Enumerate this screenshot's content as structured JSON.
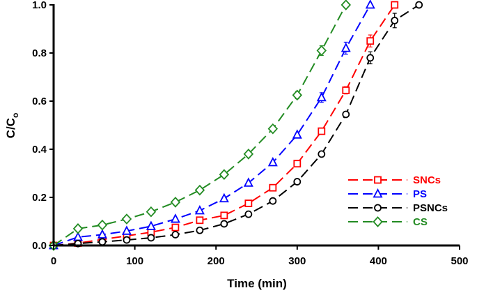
{
  "chart_data": {
    "type": "line",
    "title": "",
    "xlabel": "Time (min)",
    "ylabel": {
      "main": "C/C",
      "sub": "o"
    },
    "xlim": [
      0,
      500
    ],
    "ylim": [
      0,
      1.0
    ],
    "xticks": [
      0,
      100,
      200,
      300,
      400,
      500
    ],
    "yticks": [
      0.0,
      0.2,
      0.4,
      0.6,
      0.8,
      1.0
    ],
    "xtick_labels": [
      "0",
      "100",
      "200",
      "300",
      "400",
      "500"
    ],
    "ytick_labels": [
      "0.0",
      "0.2",
      "0.4",
      "0.6",
      "0.8",
      "1.0"
    ],
    "grid": false,
    "legend_position": "right",
    "series": [
      {
        "name": "SNCs",
        "color": "#ff0000",
        "marker": "square",
        "x": [
          0,
          30,
          60,
          90,
          120,
          150,
          180,
          210,
          240,
          270,
          300,
          330,
          360,
          390,
          420
        ],
        "y": [
          0.0,
          0.01,
          0.025,
          0.04,
          0.055,
          0.075,
          0.105,
          0.125,
          0.175,
          0.24,
          0.34,
          0.475,
          0.645,
          0.85,
          1.0
        ],
        "err": [
          0,
          0,
          0,
          0,
          0,
          0,
          0,
          0,
          0,
          0,
          0,
          0,
          0.015,
          0.025,
          0
        ]
      },
      {
        "name": "PS",
        "color": "#0000ff",
        "marker": "triangle",
        "x": [
          0,
          30,
          60,
          90,
          120,
          150,
          180,
          210,
          240,
          270,
          300,
          330,
          360,
          390
        ],
        "y": [
          0.0,
          0.035,
          0.045,
          0.06,
          0.08,
          0.11,
          0.145,
          0.195,
          0.26,
          0.345,
          0.46,
          0.615,
          0.82,
          1.0
        ],
        "err": [
          0,
          0,
          0,
          0,
          0,
          0,
          0,
          0,
          0,
          0,
          0,
          0.02,
          0.025,
          0
        ]
      },
      {
        "name": "PSNCs",
        "color": "#000000",
        "marker": "circle",
        "x": [
          0,
          30,
          60,
          90,
          120,
          150,
          180,
          210,
          240,
          270,
          300,
          330,
          360,
          390,
          420,
          450
        ],
        "y": [
          0.0,
          0.008,
          0.015,
          0.023,
          0.032,
          0.045,
          0.063,
          0.09,
          0.13,
          0.185,
          0.265,
          0.38,
          0.545,
          0.78,
          0.935,
          1.0
        ],
        "err": [
          0,
          0,
          0,
          0,
          0,
          0,
          0,
          0,
          0,
          0,
          0,
          0,
          0.01,
          0.025,
          0.03,
          0
        ]
      },
      {
        "name": "CS",
        "color": "#228b22",
        "marker": "diamond",
        "x": [
          0,
          30,
          60,
          90,
          120,
          150,
          180,
          210,
          240,
          270,
          300,
          330,
          360
        ],
        "y": [
          0.0,
          0.07,
          0.085,
          0.11,
          0.14,
          0.18,
          0.23,
          0.295,
          0.38,
          0.485,
          0.625,
          0.81,
          1.0
        ],
        "err": [
          0,
          0,
          0,
          0,
          0,
          0,
          0,
          0,
          0,
          0,
          0.015,
          0.02,
          0
        ]
      }
    ]
  }
}
